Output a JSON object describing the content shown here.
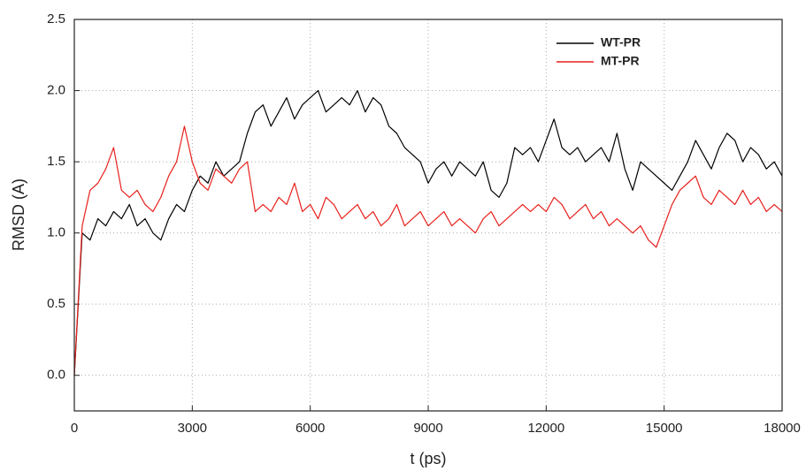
{
  "chart_data": {
    "type": "line",
    "x_label": "t (ps)",
    "y_label": "RMSD (A)",
    "xlim": [
      0,
      18000
    ],
    "ylim": [
      -0.25,
      2.5
    ],
    "xticks": [
      0,
      3000,
      6000,
      9000,
      12000,
      15000,
      18000
    ],
    "yticks": [
      {
        "value": 0,
        "label": "0.0"
      },
      0.5,
      {
        "value": 1,
        "label": "1.0"
      },
      1.5,
      {
        "value": 2,
        "label": "2.0"
      },
      2.5
    ],
    "grid": true,
    "legend": "upper right",
    "x": [
      0,
      200,
      400,
      600,
      800,
      1000,
      1200,
      1400,
      1600,
      1800,
      2000,
      2200,
      2400,
      2600,
      2800,
      3000,
      3200,
      3400,
      3600,
      3800,
      4000,
      4200,
      4400,
      4600,
      4800,
      5000,
      5200,
      5400,
      5600,
      5800,
      6000,
      6200,
      6400,
      6600,
      6800,
      7000,
      7200,
      7400,
      7600,
      7800,
      8000,
      8200,
      8400,
      8600,
      8800,
      9000,
      9200,
      9400,
      9600,
      9800,
      10000,
      10200,
      10400,
      10600,
      10800,
      11000,
      11200,
      11400,
      11600,
      11800,
      12000,
      12200,
      12400,
      12600,
      12800,
      13000,
      13200,
      13400,
      13600,
      13800,
      14000,
      14200,
      14400,
      14600,
      14800,
      15000,
      15200,
      15400,
      15600,
      15800,
      16000,
      16200,
      16400,
      16600,
      16800,
      17000,
      17200,
      17400,
      17600,
      17800,
      18000
    ],
    "series": [
      {
        "name": "WT-PR",
        "color": "#000000",
        "values": [
          0.0,
          1.0,
          0.95,
          1.1,
          1.05,
          1.15,
          1.1,
          1.2,
          1.05,
          1.1,
          1.0,
          0.95,
          1.1,
          1.2,
          1.15,
          1.3,
          1.4,
          1.35,
          1.5,
          1.4,
          1.45,
          1.5,
          1.7,
          1.85,
          1.9,
          1.75,
          1.85,
          1.95,
          1.8,
          1.9,
          1.95,
          2.0,
          1.85,
          1.9,
          1.95,
          1.9,
          2.0,
          1.85,
          1.95,
          1.9,
          1.75,
          1.7,
          1.6,
          1.55,
          1.5,
          1.35,
          1.45,
          1.5,
          1.4,
          1.5,
          1.45,
          1.4,
          1.5,
          1.3,
          1.25,
          1.35,
          1.6,
          1.55,
          1.6,
          1.5,
          1.65,
          1.8,
          1.6,
          1.55,
          1.6,
          1.5,
          1.55,
          1.6,
          1.5,
          1.7,
          1.45,
          1.3,
          1.5,
          1.45,
          1.4,
          1.35,
          1.3,
          1.4,
          1.5,
          1.65,
          1.55,
          1.45,
          1.6,
          1.7,
          1.65,
          1.5,
          1.6,
          1.55,
          1.45,
          1.5,
          1.4
        ]
      },
      {
        "name": "MT-PR",
        "color": "#e8201c",
        "values": [
          0.0,
          1.05,
          1.3,
          1.35,
          1.45,
          1.6,
          1.3,
          1.25,
          1.3,
          1.2,
          1.15,
          1.25,
          1.4,
          1.5,
          1.75,
          1.5,
          1.35,
          1.3,
          1.45,
          1.4,
          1.35,
          1.45,
          1.5,
          1.15,
          1.2,
          1.15,
          1.25,
          1.2,
          1.35,
          1.15,
          1.2,
          1.1,
          1.25,
          1.2,
          1.1,
          1.15,
          1.2,
          1.1,
          1.15,
          1.05,
          1.1,
          1.2,
          1.05,
          1.1,
          1.15,
          1.05,
          1.1,
          1.15,
          1.05,
          1.1,
          1.05,
          1.0,
          1.1,
          1.15,
          1.05,
          1.1,
          1.15,
          1.2,
          1.15,
          1.2,
          1.15,
          1.25,
          1.2,
          1.1,
          1.15,
          1.2,
          1.1,
          1.15,
          1.05,
          1.1,
          1.05,
          1.0,
          1.05,
          0.95,
          0.9,
          1.05,
          1.2,
          1.3,
          1.35,
          1.4,
          1.25,
          1.2,
          1.3,
          1.25,
          1.2,
          1.3,
          1.2,
          1.25,
          1.15,
          1.2,
          1.15
        ]
      }
    ]
  }
}
